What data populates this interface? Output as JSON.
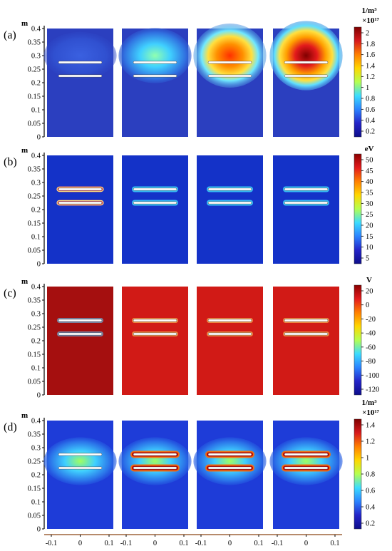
{
  "figure": {
    "panels": [
      {
        "label": "(a)",
        "y_unit": "m",
        "y_ticks": [
          "0.4",
          "0.35",
          "0.3",
          "0.25",
          "0.2",
          "0.15",
          "0.1",
          "0.05",
          "0"
        ],
        "colorbar": {
          "unit": "1/m³",
          "multiplier": "×10¹⁷",
          "ticks": [
            "2",
            "1.8",
            "1.6",
            "1.4",
            "1.2",
            "1",
            "0.8",
            "0.6",
            "0.4",
            "0.2"
          ],
          "colors": [
            "#7f0000",
            "#d7191c",
            "#ff7f00",
            "#ffd700",
            "#b4ff50",
            "#3cdcff",
            "#2b83ff",
            "#2424c8",
            "#0d0d8a"
          ]
        },
        "subplot_style": "density_a"
      },
      {
        "label": "(b)",
        "y_unit": "m",
        "y_ticks": [
          "0.4",
          "0.35",
          "0.3",
          "0.25",
          "0.2",
          "0.15",
          "0.1",
          "0.05",
          "0"
        ],
        "colorbar": {
          "unit": "eV",
          "multiplier": "",
          "ticks": [
            "50",
            "45",
            "40",
            "35",
            "30",
            "25",
            "20",
            "15",
            "10",
            "5"
          ],
          "colors": [
            "#8b0000",
            "#e31a1c",
            "#ff7f00",
            "#ffd700",
            "#b4ff50",
            "#3cdcff",
            "#2b83ff",
            "#2424c8",
            "#0d0d8a"
          ]
        },
        "subplot_style": "energy_b"
      },
      {
        "label": "(c)",
        "y_unit": "m",
        "y_ticks": [
          "0.4",
          "0.35",
          "0.3",
          "0.25",
          "0.2",
          "0.15",
          "0.1",
          "0.05",
          "0"
        ],
        "colorbar": {
          "unit": "V",
          "multiplier": "",
          "ticks": [
            "20",
            "0",
            "-20",
            "-40",
            "-60",
            "-80",
            "-100",
            "-120"
          ],
          "colors": [
            "#8b0000",
            "#e31a1c",
            "#ff7f00",
            "#ffd700",
            "#b4ff50",
            "#3cdcff",
            "#2b83ff",
            "#2424c8",
            "#0d0d8a"
          ]
        },
        "subplot_style": "potential_c"
      },
      {
        "label": "(d)",
        "y_unit": "m",
        "y_ticks": [
          "0.4",
          "0.35",
          "0.3",
          "0.25",
          "0.2",
          "0.15",
          "0.1",
          "0.05",
          "0"
        ],
        "colorbar": {
          "unit": "1/m³",
          "multiplier": "×10¹⁷",
          "ticks": [
            "1.4",
            "1.2",
            "1",
            "0.8",
            "0.6",
            "0.4",
            "0.2"
          ],
          "colors": [
            "#7f0000",
            "#d7191c",
            "#ff7f00",
            "#ffd700",
            "#b4ff50",
            "#3cdcff",
            "#2b83ff",
            "#2424c8",
            "#0d0d8a"
          ]
        },
        "subplot_style": "density_d"
      }
    ],
    "x_ticks": [
      "-0.1",
      "0",
      "0.1"
    ]
  }
}
